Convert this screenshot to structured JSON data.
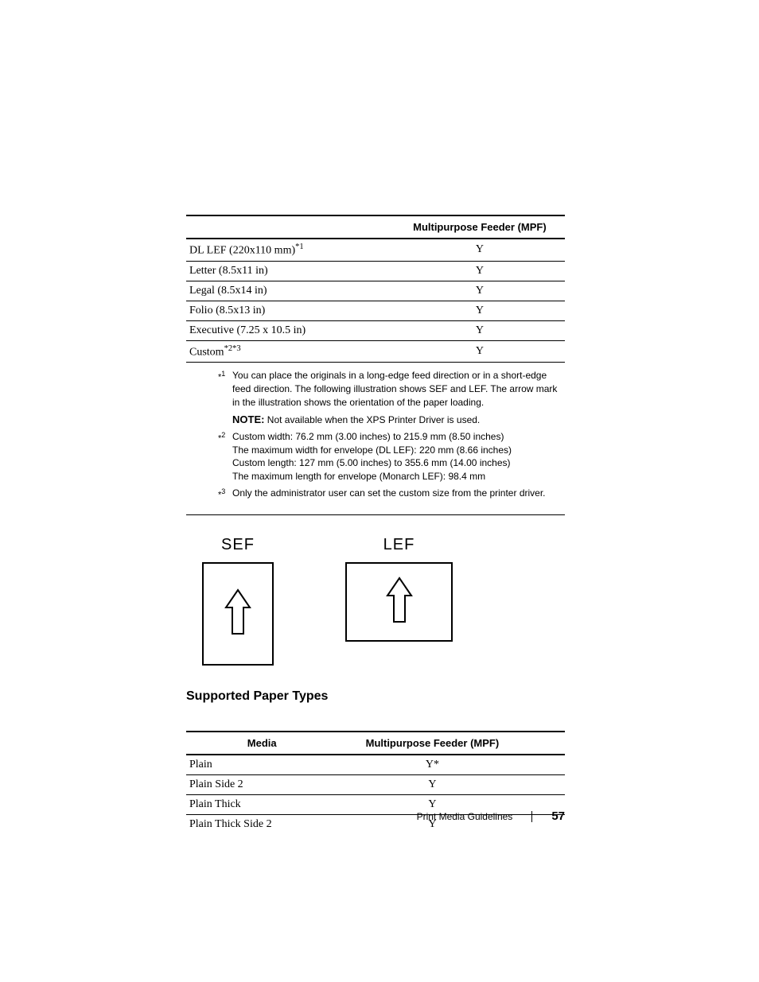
{
  "table1": {
    "header_mpf": "Multipurpose Feeder (MPF)",
    "rows": [
      {
        "media_html": "DL LEF (220x110 mm)<span class=\"sup\">*1</span>",
        "mpf": "Y"
      },
      {
        "media_html": "Letter (8.5x11 in)",
        "mpf": "Y"
      },
      {
        "media_html": "Legal (8.5x14 in)",
        "mpf": "Y"
      },
      {
        "media_html": "Folio (8.5x13 in)",
        "mpf": "Y"
      },
      {
        "media_html": "Executive (7.25 x 10.5 in)",
        "mpf": "Y"
      },
      {
        "media_html": "Custom<span class=\"sup\">*2*3</span>",
        "mpf": "Y"
      }
    ]
  },
  "footnotes": {
    "f1_marker": "*",
    "f1_sup": "1",
    "f1_text": "You can place the originals in a long-edge feed direction or in a short-edge feed direction. The following illustration shows SEF and LEF. The arrow mark in the illustration shows the orientation of the paper loading.",
    "note_label": "NOTE:",
    "note_text": " Not available when the XPS Printer Driver is used.",
    "f2_marker": "*",
    "f2_sup": "2",
    "f2_line1": "Custom width: 76.2 mm (3.00 inches) to 215.9 mm (8.50 inches)",
    "f2_line2": "The maximum width for envelope (DL LEF): 220 mm (8.66 inches)",
    "f2_line3": "Custom length: 127 mm (5.00 inches) to 355.6 mm (14.00 inches)",
    "f2_line4": "The maximum length for envelope (Monarch LEF): 98.4 mm",
    "f3_marker": "*",
    "f3_sup": "3",
    "f3_text": "Only the administrator user can set the custom size from the printer driver."
  },
  "diagrams": {
    "sef_label": "SEF",
    "lef_label": "LEF"
  },
  "section_heading": "Supported Paper Types",
  "table2": {
    "header_media": "Media",
    "header_mpf": "Multipurpose Feeder (MPF)",
    "rows": [
      {
        "media": "Plain",
        "mpf": "Y*"
      },
      {
        "media": "Plain Side 2",
        "mpf": "Y"
      },
      {
        "media": "Plain Thick",
        "mpf": "Y"
      },
      {
        "media": "Plain Thick Side 2",
        "mpf": "Y"
      }
    ]
  },
  "footer": {
    "title": "Print Media Guidelines",
    "page": "57"
  },
  "colors": {
    "text": "#000000",
    "bg": "#ffffff",
    "border": "#000000"
  }
}
